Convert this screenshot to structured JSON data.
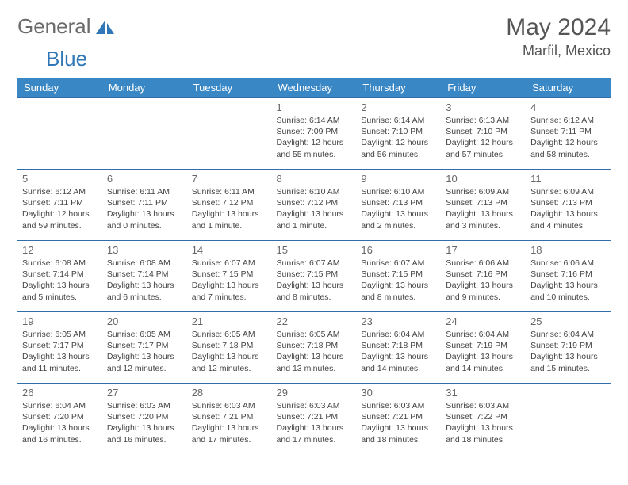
{
  "brand": {
    "part1": "General",
    "part2": "Blue"
  },
  "title": "May 2024",
  "location": "Marfil, Mexico",
  "header_bg": "#3a87c6",
  "border_color": "#2f6ea8",
  "weekdays": [
    "Sunday",
    "Monday",
    "Tuesday",
    "Wednesday",
    "Thursday",
    "Friday",
    "Saturday"
  ],
  "weeks": [
    [
      null,
      null,
      null,
      {
        "n": "1",
        "sr": "6:14 AM",
        "ss": "7:09 PM",
        "dl": "12 hours and 55 minutes."
      },
      {
        "n": "2",
        "sr": "6:14 AM",
        "ss": "7:10 PM",
        "dl": "12 hours and 56 minutes."
      },
      {
        "n": "3",
        "sr": "6:13 AM",
        "ss": "7:10 PM",
        "dl": "12 hours and 57 minutes."
      },
      {
        "n": "4",
        "sr": "6:12 AM",
        "ss": "7:11 PM",
        "dl": "12 hours and 58 minutes."
      }
    ],
    [
      {
        "n": "5",
        "sr": "6:12 AM",
        "ss": "7:11 PM",
        "dl": "12 hours and 59 minutes."
      },
      {
        "n": "6",
        "sr": "6:11 AM",
        "ss": "7:11 PM",
        "dl": "13 hours and 0 minutes."
      },
      {
        "n": "7",
        "sr": "6:11 AM",
        "ss": "7:12 PM",
        "dl": "13 hours and 1 minute."
      },
      {
        "n": "8",
        "sr": "6:10 AM",
        "ss": "7:12 PM",
        "dl": "13 hours and 1 minute."
      },
      {
        "n": "9",
        "sr": "6:10 AM",
        "ss": "7:13 PM",
        "dl": "13 hours and 2 minutes."
      },
      {
        "n": "10",
        "sr": "6:09 AM",
        "ss": "7:13 PM",
        "dl": "13 hours and 3 minutes."
      },
      {
        "n": "11",
        "sr": "6:09 AM",
        "ss": "7:13 PM",
        "dl": "13 hours and 4 minutes."
      }
    ],
    [
      {
        "n": "12",
        "sr": "6:08 AM",
        "ss": "7:14 PM",
        "dl": "13 hours and 5 minutes."
      },
      {
        "n": "13",
        "sr": "6:08 AM",
        "ss": "7:14 PM",
        "dl": "13 hours and 6 minutes."
      },
      {
        "n": "14",
        "sr": "6:07 AM",
        "ss": "7:15 PM",
        "dl": "13 hours and 7 minutes."
      },
      {
        "n": "15",
        "sr": "6:07 AM",
        "ss": "7:15 PM",
        "dl": "13 hours and 8 minutes."
      },
      {
        "n": "16",
        "sr": "6:07 AM",
        "ss": "7:15 PM",
        "dl": "13 hours and 8 minutes."
      },
      {
        "n": "17",
        "sr": "6:06 AM",
        "ss": "7:16 PM",
        "dl": "13 hours and 9 minutes."
      },
      {
        "n": "18",
        "sr": "6:06 AM",
        "ss": "7:16 PM",
        "dl": "13 hours and 10 minutes."
      }
    ],
    [
      {
        "n": "19",
        "sr": "6:05 AM",
        "ss": "7:17 PM",
        "dl": "13 hours and 11 minutes."
      },
      {
        "n": "20",
        "sr": "6:05 AM",
        "ss": "7:17 PM",
        "dl": "13 hours and 12 minutes."
      },
      {
        "n": "21",
        "sr": "6:05 AM",
        "ss": "7:18 PM",
        "dl": "13 hours and 12 minutes."
      },
      {
        "n": "22",
        "sr": "6:05 AM",
        "ss": "7:18 PM",
        "dl": "13 hours and 13 minutes."
      },
      {
        "n": "23",
        "sr": "6:04 AM",
        "ss": "7:18 PM",
        "dl": "13 hours and 14 minutes."
      },
      {
        "n": "24",
        "sr": "6:04 AM",
        "ss": "7:19 PM",
        "dl": "13 hours and 14 minutes."
      },
      {
        "n": "25",
        "sr": "6:04 AM",
        "ss": "7:19 PM",
        "dl": "13 hours and 15 minutes."
      }
    ],
    [
      {
        "n": "26",
        "sr": "6:04 AM",
        "ss": "7:20 PM",
        "dl": "13 hours and 16 minutes."
      },
      {
        "n": "27",
        "sr": "6:03 AM",
        "ss": "7:20 PM",
        "dl": "13 hours and 16 minutes."
      },
      {
        "n": "28",
        "sr": "6:03 AM",
        "ss": "7:21 PM",
        "dl": "13 hours and 17 minutes."
      },
      {
        "n": "29",
        "sr": "6:03 AM",
        "ss": "7:21 PM",
        "dl": "13 hours and 17 minutes."
      },
      {
        "n": "30",
        "sr": "6:03 AM",
        "ss": "7:21 PM",
        "dl": "13 hours and 18 minutes."
      },
      {
        "n": "31",
        "sr": "6:03 AM",
        "ss": "7:22 PM",
        "dl": "13 hours and 18 minutes."
      },
      null
    ]
  ],
  "labels": {
    "sunrise": "Sunrise:",
    "sunset": "Sunset:",
    "daylight": "Daylight:"
  }
}
